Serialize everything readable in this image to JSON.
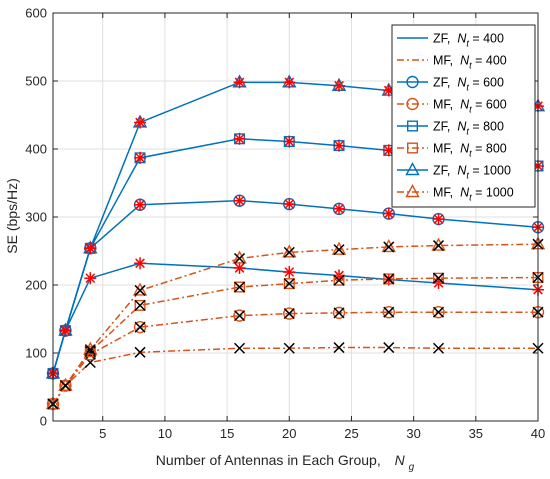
{
  "chart_data": {
    "type": "line",
    "xlabel": "Number of Antennas in Each Group,",
    "xlabel_symbol": "N",
    "xlabel_subscript": "g",
    "ylabel": "SE (bps/Hz)",
    "xlim": [
      1,
      40
    ],
    "ylim": [
      0,
      600
    ],
    "xticks": [
      5,
      10,
      15,
      20,
      25,
      30,
      35,
      40
    ],
    "yticks": [
      0,
      100,
      200,
      300,
      400,
      500,
      600
    ],
    "grid": true,
    "legend_position": "top-right",
    "colors": {
      "zf": "#0072BD",
      "mf": "#D95319",
      "star": "#FF0000",
      "cross": "#000000"
    },
    "x": [
      1,
      2,
      4,
      8,
      16,
      20,
      24,
      28,
      32,
      40
    ],
    "series": [
      {
        "name": "ZF,  N_t = 400",
        "legend_prefix": "ZF,",
        "legend_var": "N",
        "legend_sub": "t",
        "legend_value": "= 400",
        "method": "ZF",
        "marker": "none",
        "values": [
          70,
          133,
          210,
          232,
          225,
          219,
          214,
          208,
          203,
          193
        ]
      },
      {
        "name": "MF,  N_t = 400",
        "legend_prefix": "MF,",
        "legend_var": "N",
        "legend_sub": "t",
        "legend_value": "= 400",
        "method": "MF",
        "marker": "none",
        "values": [
          25,
          52,
          86,
          101,
          107,
          107,
          108,
          108,
          107,
          107
        ]
      },
      {
        "name": "ZF,  N_t = 600",
        "legend_prefix": "ZF,",
        "legend_var": "N",
        "legend_sub": "t",
        "legend_value": "= 600",
        "method": "ZF",
        "marker": "circle",
        "values": [
          70,
          133,
          254,
          318,
          324,
          319,
          312,
          305,
          297,
          285
        ]
      },
      {
        "name": "MF,  N_t = 600",
        "legend_prefix": "MF,",
        "legend_var": "N",
        "legend_sub": "t",
        "legend_value": "= 600",
        "method": "MF",
        "marker": "circle",
        "values": [
          25,
          52,
          98,
          138,
          155,
          158,
          159,
          160,
          160,
          160
        ]
      },
      {
        "name": "ZF,  N_t = 800",
        "legend_prefix": "ZF,",
        "legend_var": "N",
        "legend_sub": "t",
        "legend_value": "= 800",
        "method": "ZF",
        "marker": "square",
        "values": [
          70,
          133,
          254,
          387,
          415,
          411,
          405,
          398,
          392,
          375
        ]
      },
      {
        "name": "MF,  N_t = 800",
        "legend_prefix": "MF,",
        "legend_var": "N",
        "legend_sub": "t",
        "legend_value": "= 800",
        "method": "MF",
        "marker": "square",
        "values": [
          25,
          52,
          102,
          170,
          197,
          202,
          207,
          209,
          210,
          211
        ]
      },
      {
        "name": "ZF,  N_t = 1000",
        "legend_prefix": "ZF,",
        "legend_var": "N",
        "legend_sub": "t",
        "legend_value": "= 1000",
        "method": "ZF",
        "marker": "triangle",
        "values": [
          70,
          133,
          254,
          439,
          498,
          498,
          493,
          486,
          480,
          463
        ]
      },
      {
        "name": "MF,  N_t = 1000",
        "legend_prefix": "MF,",
        "legend_var": "N",
        "legend_sub": "t",
        "legend_value": "= 1000",
        "method": "MF",
        "marker": "triangle",
        "values": [
          25,
          52,
          105,
          192,
          239,
          248,
          252,
          256,
          258,
          260
        ]
      }
    ]
  }
}
